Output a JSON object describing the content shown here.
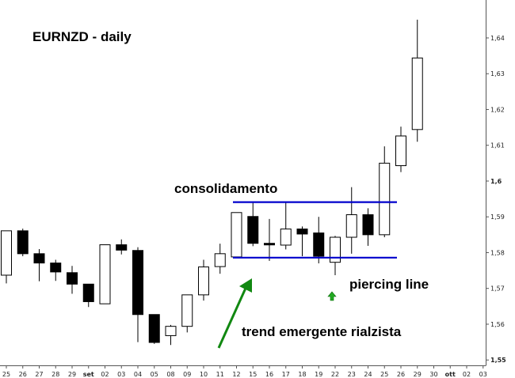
{
  "chart_data": {
    "type": "candlestick",
    "title": "EURNZD - daily",
    "y_ticks": [
      "1,64",
      "1,63",
      "1,62",
      "1,61",
      "1,6",
      "1,59",
      "1,58",
      "1,57",
      "1,56",
      "1,55"
    ],
    "y_tick_values": [
      1.64,
      1.63,
      1.62,
      1.61,
      1.6,
      1.59,
      1.58,
      1.57,
      1.56,
      1.55
    ],
    "y_bold_ticks": [
      "1,6",
      "1,55"
    ],
    "ylim": [
      1.5485,
      1.6506
    ],
    "x_tick_labels": [
      "25",
      "26",
      "27",
      "28",
      "29",
      "set",
      "02",
      "03",
      "04",
      "05",
      "08",
      "09",
      "10",
      "11",
      "12",
      "15",
      "16",
      "17",
      "18",
      "19",
      "22",
      "23",
      "24",
      "25",
      "26",
      "29",
      "30",
      "ott",
      "02",
      "03"
    ],
    "x_bold_labels": [
      "set",
      "ott"
    ],
    "candles": [
      {
        "date": "25",
        "open": 1.5737,
        "high": 1.5861,
        "low": 1.5714,
        "close": 1.5861
      },
      {
        "date": "26",
        "open": 1.5861,
        "high": 1.5867,
        "low": 1.579,
        "close": 1.5797
      },
      {
        "date": "27",
        "open": 1.5797,
        "high": 1.581,
        "low": 1.572,
        "close": 1.5771
      },
      {
        "date": "28",
        "open": 1.5771,
        "high": 1.578,
        "low": 1.5721,
        "close": 1.5746
      },
      {
        "date": "29",
        "open": 1.5744,
        "high": 1.5763,
        "low": 1.5685,
        "close": 1.5712
      },
      {
        "date": "set",
        "open": 1.5712,
        "high": 1.5712,
        "low": 1.5648,
        "close": 1.5663
      },
      {
        "date": "02",
        "open": 1.5657,
        "high": 1.5822,
        "low": 1.5657,
        "close": 1.5822
      },
      {
        "date": "03",
        "open": 1.5822,
        "high": 1.5837,
        "low": 1.5795,
        "close": 1.5807
      },
      {
        "date": "04",
        "open": 1.5806,
        "high": 1.5815,
        "low": 1.555,
        "close": 1.5627
      },
      {
        "date": "05",
        "open": 1.5627,
        "high": 1.5627,
        "low": 1.5545,
        "close": 1.5549
      },
      {
        "date": "08",
        "open": 1.5568,
        "high": 1.5598,
        "low": 1.5542,
        "close": 1.5594
      },
      {
        "date": "09",
        "open": 1.5594,
        "high": 1.5682,
        "low": 1.5577,
        "close": 1.5682
      },
      {
        "date": "10",
        "open": 1.5682,
        "high": 1.578,
        "low": 1.5666,
        "close": 1.576
      },
      {
        "date": "11",
        "open": 1.5761,
        "high": 1.5825,
        "low": 1.5741,
        "close": 1.5797
      },
      {
        "date": "12",
        "open": 1.5788,
        "high": 1.5912,
        "low": 1.5786,
        "close": 1.5912
      },
      {
        "date": "15",
        "open": 1.5901,
        "high": 1.5939,
        "low": 1.5818,
        "close": 1.5826
      },
      {
        "date": "16",
        "open": 1.5826,
        "high": 1.5894,
        "low": 1.5777,
        "close": 1.5822
      },
      {
        "date": "17",
        "open": 1.5821,
        "high": 1.5942,
        "low": 1.5809,
        "close": 1.5866
      },
      {
        "date": "18",
        "open": 1.5866,
        "high": 1.5873,
        "low": 1.579,
        "close": 1.5852
      },
      {
        "date": "19",
        "open": 1.5855,
        "high": 1.59,
        "low": 1.577,
        "close": 1.579
      },
      {
        "date": "22",
        "open": 1.5773,
        "high": 1.5847,
        "low": 1.5737,
        "close": 1.5843
      },
      {
        "date": "23",
        "open": 1.5843,
        "high": 1.5983,
        "low": 1.5797,
        "close": 1.5906
      },
      {
        "date": "24",
        "open": 1.5906,
        "high": 1.5924,
        "low": 1.5819,
        "close": 1.585
      },
      {
        "date": "25",
        "open": 1.585,
        "high": 1.6097,
        "low": 1.5843,
        "close": 1.605
      },
      {
        "date": "26",
        "open": 1.6043,
        "high": 1.6152,
        "low": 1.6025,
        "close": 1.6126
      },
      {
        "date": "29",
        "open": 1.6144,
        "high": 1.6451,
        "low": 1.611,
        "close": 1.6344
      }
    ],
    "consolidation_lines": [
      1.5941,
      1.5786
    ],
    "annotations": {
      "consolidation": "consolidamento",
      "piercing": "piercing line",
      "trend": "trend emergente rialzista"
    },
    "colors": {
      "bullish_body": "#ffffff",
      "bearish_body": "#000000",
      "consolidation_line": "#0000cc",
      "trend_arrow": "#118811",
      "piercing_marker": "#22aa22"
    },
    "grid": false
  }
}
